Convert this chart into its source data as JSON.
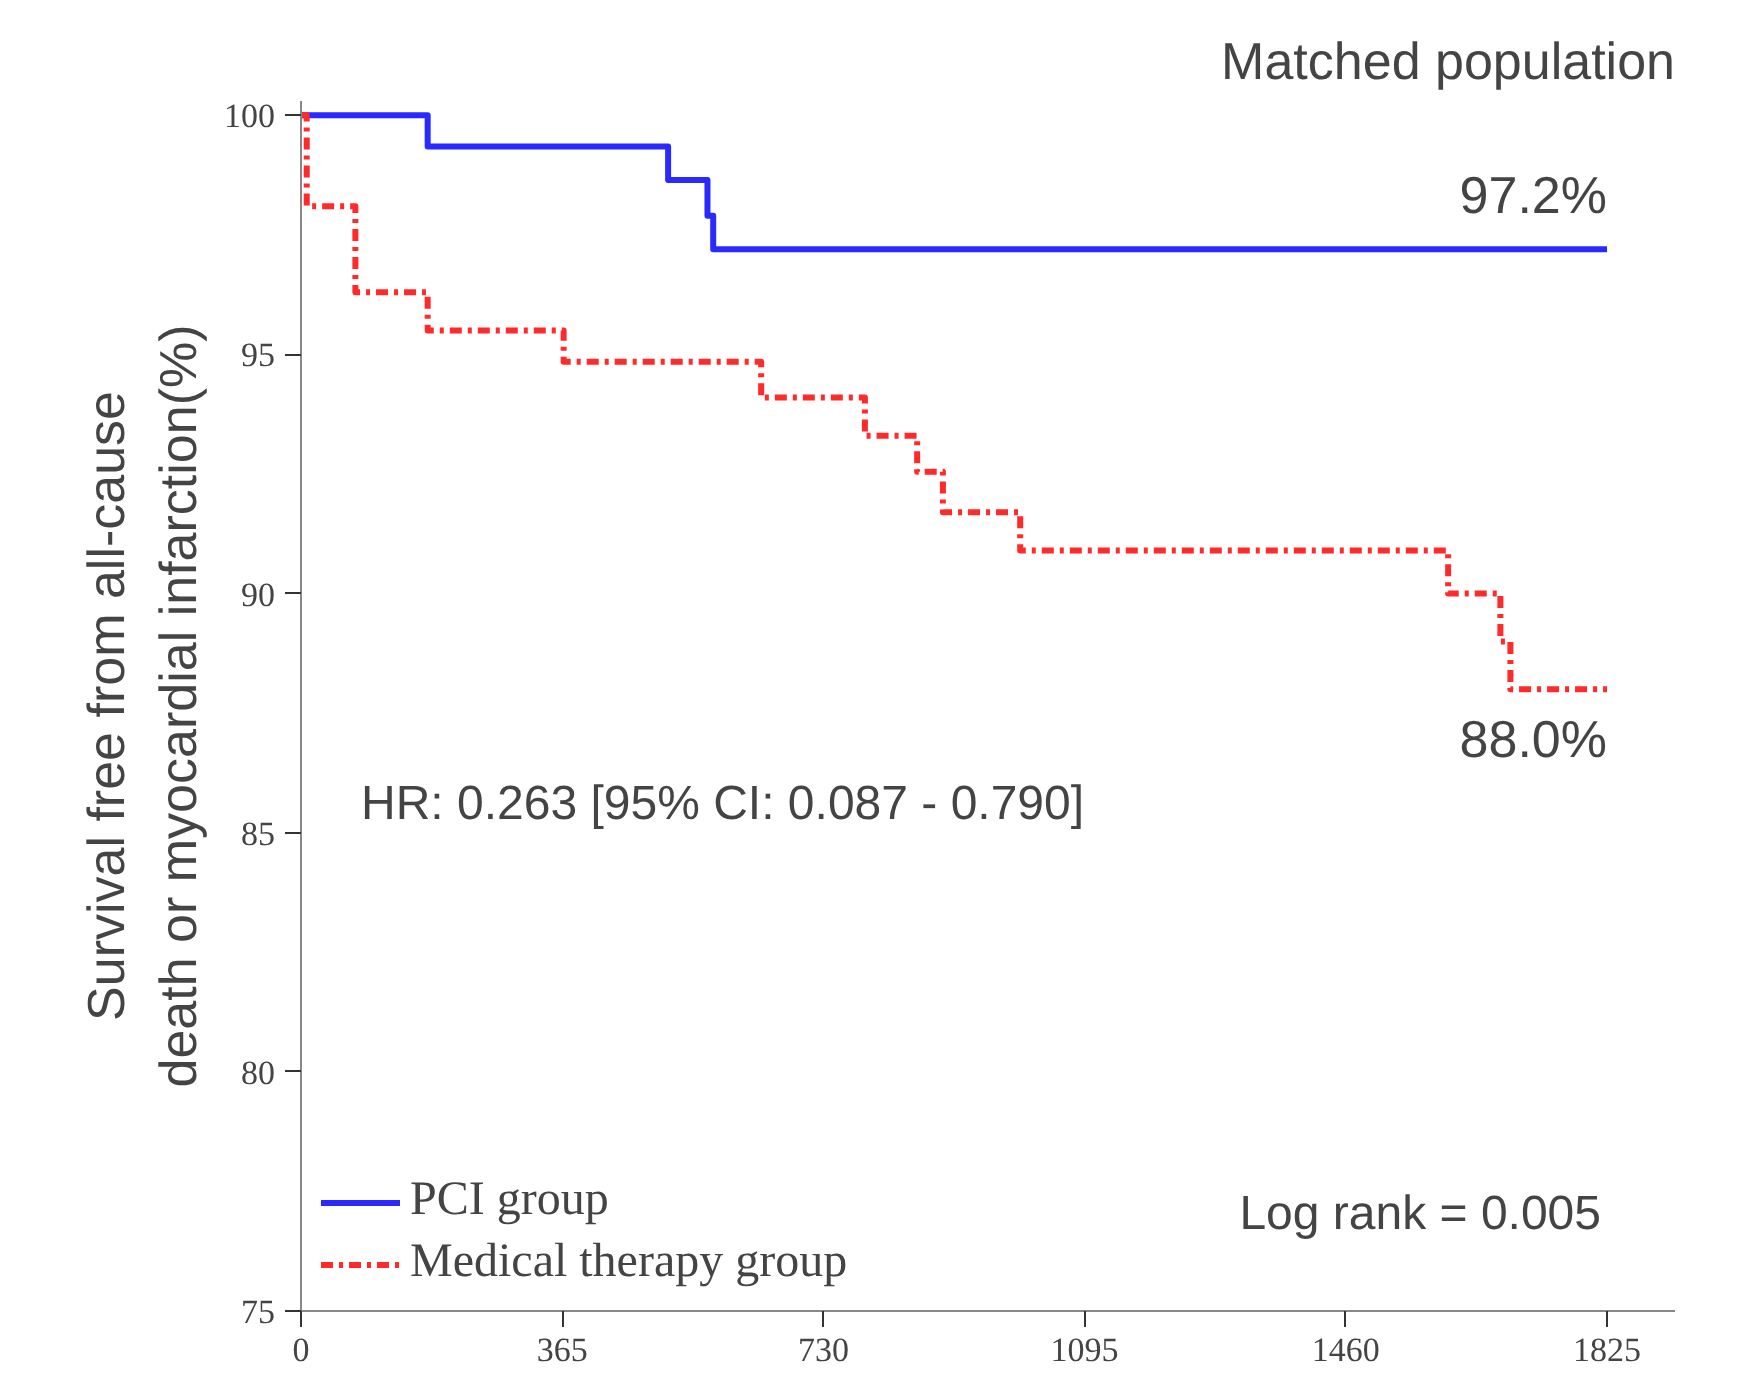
{
  "chart_data": {
    "type": "step",
    "title": "Matched population",
    "ylabel": "Survival free from all-cause\ndeath or myocardial infarction(%)",
    "xlim": [
      0,
      1920
    ],
    "xticks": [
      0,
      365,
      730,
      1095,
      1460,
      1825
    ],
    "ylim": [
      75,
      100.3
    ],
    "yticks": [
      75,
      80,
      85,
      90,
      95,
      100
    ],
    "series": [
      {
        "name": "PCI group",
        "color": "#2a2aff",
        "line_style": "solid",
        "x": [
          0,
          177,
          513,
          568,
          576,
          1825
        ],
        "values": [
          100,
          99.35,
          98.65,
          97.9,
          97.2,
          97.2
        ]
      },
      {
        "name": "Medical therapy group",
        "color": "#ff2a2a",
        "line_style": "dashed",
        "x": [
          0,
          8,
          76,
          177,
          367,
          643,
          788,
          861,
          897,
          1005,
          1603,
          1676,
          1690,
          1825
        ],
        "values": [
          100,
          98.1,
          96.3,
          95.5,
          94.85,
          94.1,
          93.3,
          92.55,
          91.7,
          90.9,
          90.0,
          89.0,
          88.0,
          88.0
        ]
      }
    ],
    "annotations": [
      {
        "text": "97.2%",
        "x": 1825,
        "y": 97.2
      },
      {
        "text": "88.0%",
        "x": 1825,
        "y": 88.0
      },
      "HR: 0.263 [95% CI: 0.087 - 0.790]",
      "Log rank = 0.005"
    ],
    "legend": "bottom left",
    "grid": false,
    "marker": "none"
  }
}
